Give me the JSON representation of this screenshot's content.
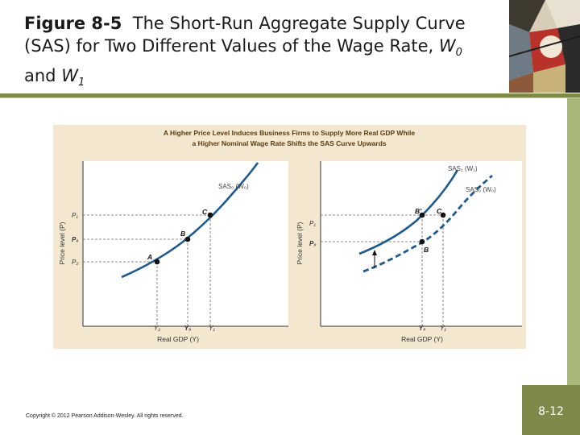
{
  "slide": {
    "figure_label": "Figure 8-5",
    "title_text": "The Short-Run Aggregate Supply Curve (SAS) for Two Different Values of the Wage Rate,",
    "w0": "W",
    "w0_sub": "0",
    "and": "and",
    "w1": "W",
    "w1_sub": "1"
  },
  "figure": {
    "heading_line1": "A Higher Price Level Induces Business Firms to Supply More Real GDP While",
    "heading_line2": "a Higher Nominal Wage Rate Shifts the SAS Curve Upwards",
    "left": {
      "ylabel": "Price level (P)",
      "xlabel": "Real GDP (Y)",
      "curve_label": "SAS₀ (W₀)",
      "points": [
        "A",
        "B",
        "C"
      ],
      "yticks": [
        "P₁",
        "P₀",
        "P₂"
      ],
      "xticks": [
        "Y₂",
        "Y₀",
        "Y₁"
      ]
    },
    "right": {
      "ylabel": "Price level (P)",
      "xlabel": "Real GDP (Y)",
      "curve1_label": "SAS₁ (W₁)",
      "curve0_label": "SAS₀ (W₀)",
      "points": [
        "B′",
        "C",
        "B"
      ],
      "yticks": [
        "P₁",
        "P₀"
      ],
      "xticks": [
        "Y₀",
        "Y₁"
      ]
    }
  },
  "footer": {
    "copyright": "Copyright © 2012 Pearson Addison-Wesley. All rights reserved.",
    "page": "8-12"
  },
  "colors": {
    "curve": "#1f5a8c",
    "panel_bg": "#f3e7cf",
    "plot_bg": "#ffffff",
    "band": "#7d8a4a",
    "heading": "#5a3d10"
  }
}
